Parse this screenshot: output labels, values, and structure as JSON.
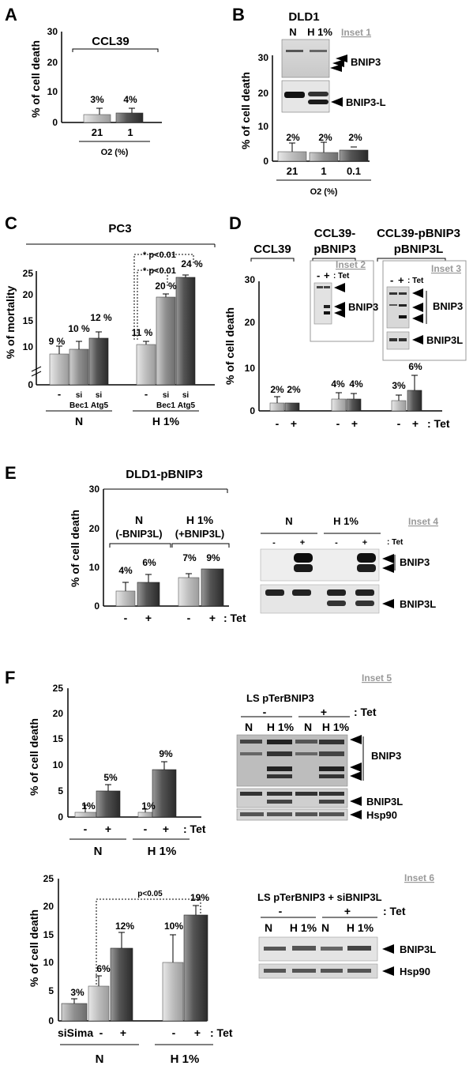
{
  "panels": {
    "A": {
      "label": "A",
      "title": "CCL39",
      "ylabel": "% of cell death",
      "ticks": [
        "30",
        "20",
        "10",
        "0"
      ],
      "bars": [
        {
          "cat": "21",
          "value": "3%"
        },
        {
          "cat": "1",
          "value": "4%"
        }
      ],
      "xlabel": "O2 (%)"
    },
    "B": {
      "label": "B",
      "title": "DLD1",
      "ylabel": "% of cell death",
      "ticks": [
        "30",
        "20",
        "10",
        "0"
      ],
      "bars": [
        {
          "cat": "21",
          "value": "2%"
        },
        {
          "cat": "1",
          "value": "2%"
        },
        {
          "cat": "0.1",
          "value": "2%"
        }
      ],
      "xlabel": "O2 (%)",
      "inset": "Inset 1",
      "lanes": [
        "N",
        "H 1%"
      ],
      "bands": [
        "BNIP3",
        "BNIP3-L"
      ]
    },
    "C": {
      "label": "C",
      "title": "PC3",
      "ylabel": "% of mortality",
      "ticks": [
        "25",
        "20",
        "15",
        "10",
        "0"
      ],
      "bars": [
        {
          "cat": "-",
          "value": "9 %"
        },
        {
          "cat": "si Bec1",
          "value": "10 %"
        },
        {
          "cat": "si Atg5",
          "value": "12 %"
        },
        {
          "cat": "-",
          "value": "11 %"
        },
        {
          "cat": "si Bec1",
          "value": "20 %"
        },
        {
          "cat": "si Atg5",
          "value": "24 %"
        }
      ],
      "groups": [
        "N",
        "H 1%"
      ],
      "sig1": "* p<0.01",
      "sig2": "* p<0.01"
    },
    "D": {
      "label": "D",
      "groups": [
        "CCL39",
        "CCL39- pBNIP3",
        "CCL39-pBNIP3 pBNIP3L"
      ],
      "ylabel": "% of cell death",
      "ticks": [
        "30",
        "20",
        "10",
        "0"
      ],
      "values": [
        "2%",
        "2%",
        "4%",
        "4%",
        "3%",
        "6%"
      ],
      "tet": ": Tet",
      "inset2": "Inset 2",
      "inset3": "Inset 3",
      "bands2": [
        "BNIP3"
      ],
      "bands3": [
        "BNIP3",
        "BNIP3L"
      ]
    },
    "E": {
      "label": "E",
      "title": "DLD1-pBNIP3",
      "ylabel": "% of cell death",
      "ticks": [
        "30",
        "20",
        "10",
        "0"
      ],
      "groups": [
        "N (-BNIP3L)",
        "H 1% (+BNIP3L)"
      ],
      "values": [
        "4%",
        "6%",
        "7%",
        "9%"
      ],
      "tet": ": Tet",
      "inset": "Inset 4",
      "lanes": [
        "N",
        "H 1%"
      ],
      "bands": [
        "BNIP3",
        "BNIP3L"
      ]
    },
    "F": {
      "label": "F",
      "ylabel": "% of cell death",
      "ticks": [
        "25",
        "20",
        "15",
        "10",
        "5",
        "0"
      ],
      "values": [
        "1%",
        "5%",
        "1%",
        "9%"
      ],
      "groups": [
        "N",
        "H 1%"
      ],
      "tet": ": Tet",
      "inset5": "Inset 5",
      "blot5_title": "LS pTerBNIP3",
      "bands5": [
        "BNIP3",
        "BNIP3L",
        "Hsp90"
      ],
      "bottom_ticks": [
        "25",
        "20",
        "15",
        "10",
        "5",
        "0"
      ],
      "bottom_values": [
        "3%",
        "6%",
        "12%",
        "10%",
        "19%"
      ],
      "siSima": "siSima",
      "pval": "p<0.05",
      "inset6": "Inset 6",
      "blot6_title": "LS pTerBNIP3 + siBNIP3L",
      "bands6": [
        "BNIP3L",
        "Hsp90"
      ]
    }
  },
  "chart_data": [
    {
      "type": "bar",
      "title": "CCL39",
      "ylabel": "% of cell death",
      "xlabel": "O2 (%)",
      "categories": [
        "21",
        "1"
      ],
      "values": [
        3,
        4
      ],
      "ylim": [
        0,
        30
      ]
    },
    {
      "type": "bar",
      "title": "DLD1",
      "ylabel": "% of cell death",
      "xlabel": "O2 (%)",
      "categories": [
        "21",
        "1",
        "0.1"
      ],
      "values": [
        2,
        2,
        2
      ],
      "ylim": [
        0,
        30
      ]
    },
    {
      "type": "bar",
      "title": "PC3",
      "ylabel": "% of mortality",
      "categories": [
        "N -",
        "N si Bec1",
        "N si Atg5",
        "H 1% -",
        "H 1% si Bec1",
        "H 1% si Atg5"
      ],
      "values": [
        9,
        10,
        12,
        11,
        20,
        24
      ],
      "ylim": [
        0,
        25
      ]
    },
    {
      "type": "bar",
      "ylabel": "% of cell death",
      "categories": [
        "CCL39 -",
        "CCL39 +",
        "CCL39-pBNIP3 -",
        "CCL39-pBNIP3 +",
        "CCL39-pBNIP3 pBNIP3L -",
        "CCL39-pBNIP3 pBNIP3L +"
      ],
      "values": [
        2,
        2,
        4,
        4,
        3,
        6
      ],
      "ylim": [
        0,
        30
      ]
    },
    {
      "type": "bar",
      "title": "DLD1-pBNIP3",
      "ylabel": "% of cell death",
      "categories": [
        "N -",
        "N +",
        "H 1% -",
        "H 1% +"
      ],
      "values": [
        4,
        6,
        7,
        9
      ],
      "ylim": [
        0,
        30
      ]
    },
    {
      "type": "bar",
      "ylabel": "% of cell death",
      "categories": [
        "N -",
        "N +",
        "H 1% -",
        "H 1% +"
      ],
      "values": [
        1,
        5,
        1,
        9
      ],
      "ylim": [
        0,
        25
      ]
    },
    {
      "type": "bar",
      "ylabel": "% of cell death",
      "categories": [
        "siSima",
        "N -",
        "N +",
        "H 1% -",
        "H 1% +"
      ],
      "values": [
        3,
        6,
        12,
        10,
        19
      ],
      "ylim": [
        0,
        25
      ]
    }
  ]
}
